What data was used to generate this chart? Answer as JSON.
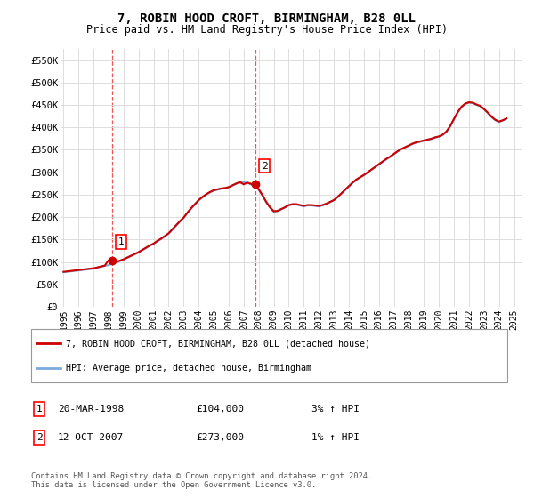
{
  "title": "7, ROBIN HOOD CROFT, BIRMINGHAM, B28 0LL",
  "subtitle": "Price paid vs. HM Land Registry's House Price Index (HPI)",
  "ylim": [
    0,
    575000
  ],
  "yticks": [
    0,
    50000,
    100000,
    150000,
    200000,
    250000,
    300000,
    350000,
    400000,
    450000,
    500000,
    550000
  ],
  "ytick_labels": [
    "£0",
    "£50K",
    "£100K",
    "£150K",
    "£200K",
    "£250K",
    "£300K",
    "£350K",
    "£400K",
    "£450K",
    "£500K",
    "£550K"
  ],
  "xlim": [
    1994.8,
    2025.5
  ],
  "xticks": [
    1995,
    1996,
    1997,
    1998,
    1999,
    2000,
    2001,
    2002,
    2003,
    2004,
    2005,
    2006,
    2007,
    2008,
    2009,
    2010,
    2011,
    2012,
    2013,
    2014,
    2015,
    2016,
    2017,
    2018,
    2019,
    2020,
    2021,
    2022,
    2023,
    2024,
    2025
  ],
  "hpi_x": [
    1995.0,
    1995.25,
    1995.5,
    1995.75,
    1996.0,
    1996.25,
    1996.5,
    1996.75,
    1997.0,
    1997.25,
    1997.5,
    1997.75,
    1998.0,
    1998.25,
    1998.5,
    1998.75,
    1999.0,
    1999.25,
    1999.5,
    1999.75,
    2000.0,
    2000.25,
    2000.5,
    2000.75,
    2001.0,
    2001.25,
    2001.5,
    2001.75,
    2002.0,
    2002.25,
    2002.5,
    2002.75,
    2003.0,
    2003.25,
    2003.5,
    2003.75,
    2004.0,
    2004.25,
    2004.5,
    2004.75,
    2005.0,
    2005.25,
    2005.5,
    2005.75,
    2006.0,
    2006.25,
    2006.5,
    2006.75,
    2007.0,
    2007.25,
    2007.5,
    2007.75,
    2008.0,
    2008.25,
    2008.5,
    2008.75,
    2009.0,
    2009.25,
    2009.5,
    2009.75,
    2010.0,
    2010.25,
    2010.5,
    2010.75,
    2011.0,
    2011.25,
    2011.5,
    2011.75,
    2012.0,
    2012.25,
    2012.5,
    2012.75,
    2013.0,
    2013.25,
    2013.5,
    2013.75,
    2014.0,
    2014.25,
    2014.5,
    2014.75,
    2015.0,
    2015.25,
    2015.5,
    2015.75,
    2016.0,
    2016.25,
    2016.5,
    2016.75,
    2017.0,
    2017.25,
    2017.5,
    2017.75,
    2018.0,
    2018.25,
    2018.5,
    2018.75,
    2019.0,
    2019.25,
    2019.5,
    2019.75,
    2020.0,
    2020.25,
    2020.5,
    2020.75,
    2021.0,
    2021.25,
    2021.5,
    2021.75,
    2022.0,
    2022.25,
    2022.5,
    2022.75,
    2023.0,
    2023.25,
    2023.5,
    2023.75,
    2024.0,
    2024.25,
    2024.5
  ],
  "hpi_y": [
    77000,
    78000,
    79000,
    80000,
    81000,
    82000,
    83000,
    84000,
    85000,
    87000,
    89000,
    91000,
    93000,
    96000,
    99000,
    102000,
    105000,
    109000,
    113000,
    117000,
    121000,
    126000,
    131000,
    136000,
    140000,
    146000,
    151000,
    157000,
    163000,
    172000,
    181000,
    190000,
    198000,
    209000,
    219000,
    228000,
    237000,
    244000,
    250000,
    255000,
    259000,
    261000,
    263000,
    264000,
    266000,
    270000,
    274000,
    277000,
    278000,
    276000,
    273000,
    268000,
    261000,
    248000,
    233000,
    221000,
    212000,
    213000,
    217000,
    221000,
    226000,
    228000,
    228000,
    226000,
    224000,
    226000,
    226000,
    225000,
    224000,
    226000,
    229000,
    233000,
    237000,
    244000,
    252000,
    260000,
    268000,
    276000,
    283000,
    288000,
    293000,
    299000,
    305000,
    311000,
    317000,
    323000,
    329000,
    334000,
    340000,
    346000,
    351000,
    355000,
    359000,
    363000,
    366000,
    368000,
    370000,
    372000,
    374000,
    377000,
    379000,
    383000,
    390000,
    402000,
    418000,
    433000,
    445000,
    452000,
    455000,
    454000,
    450000,
    447000,
    440000,
    432000,
    423000,
    416000,
    412000,
    415000,
    419000
  ],
  "price_x": [
    1995.0,
    1995.25,
    1995.5,
    1995.75,
    1996.0,
    1996.25,
    1996.5,
    1996.75,
    1997.0,
    1997.25,
    1997.5,
    1997.75,
    1998.0,
    1998.25,
    1998.5,
    1998.75,
    1999.0,
    1999.25,
    1999.5,
    1999.75,
    2000.0,
    2000.25,
    2000.5,
    2000.75,
    2001.0,
    2001.25,
    2001.5,
    2001.75,
    2002.0,
    2002.25,
    2002.5,
    2002.75,
    2003.0,
    2003.25,
    2003.5,
    2003.75,
    2004.0,
    2004.25,
    2004.5,
    2004.75,
    2005.0,
    2005.25,
    2005.5,
    2005.75,
    2006.0,
    2006.25,
    2006.5,
    2006.75,
    2007.0,
    2007.25,
    2007.5,
    2007.75,
    2008.0,
    2008.25,
    2008.5,
    2008.75,
    2009.0,
    2009.25,
    2009.5,
    2009.75,
    2010.0,
    2010.25,
    2010.5,
    2010.75,
    2011.0,
    2011.25,
    2011.5,
    2011.75,
    2012.0,
    2012.25,
    2012.5,
    2012.75,
    2013.0,
    2013.25,
    2013.5,
    2013.75,
    2014.0,
    2014.25,
    2014.5,
    2014.75,
    2015.0,
    2015.25,
    2015.5,
    2015.75,
    2016.0,
    2016.25,
    2016.5,
    2016.75,
    2017.0,
    2017.25,
    2017.5,
    2017.75,
    2018.0,
    2018.25,
    2018.5,
    2018.75,
    2019.0,
    2019.25,
    2019.5,
    2019.75,
    2020.0,
    2020.25,
    2020.5,
    2020.75,
    2021.0,
    2021.25,
    2021.5,
    2021.75,
    2022.0,
    2022.25,
    2022.5,
    2022.75,
    2023.0,
    2023.25,
    2023.5,
    2023.75,
    2024.0,
    2024.25,
    2024.5
  ],
  "price_y": [
    78000,
    79000,
    80000,
    81000,
    82000,
    83000,
    84000,
    85000,
    86000,
    88000,
    90000,
    92000,
    104000,
    97000,
    100000,
    103000,
    106000,
    110000,
    114000,
    118000,
    122000,
    127000,
    132000,
    137000,
    141000,
    147000,
    152000,
    158000,
    164000,
    173000,
    182000,
    191000,
    199000,
    210000,
    220000,
    229000,
    238000,
    245000,
    251000,
    256000,
    260000,
    262000,
    264000,
    265000,
    267000,
    271000,
    275000,
    278000,
    273000,
    277000,
    274000,
    269000,
    262000,
    249000,
    234000,
    222000,
    213000,
    214000,
    218000,
    222000,
    227000,
    229000,
    229000,
    227000,
    225000,
    227000,
    227000,
    226000,
    225000,
    227000,
    230000,
    234000,
    238000,
    245000,
    253000,
    261000,
    269000,
    277000,
    284000,
    289000,
    294000,
    300000,
    306000,
    312000,
    318000,
    324000,
    330000,
    335000,
    341000,
    347000,
    352000,
    356000,
    360000,
    364000,
    367000,
    369000,
    371000,
    373000,
    375000,
    378000,
    380000,
    384000,
    391000,
    403000,
    419000,
    434000,
    446000,
    453000,
    456000,
    455000,
    451000,
    448000,
    441000,
    433000,
    424000,
    417000,
    413000,
    416000,
    420000
  ],
  "sale1_x": 1998.22,
  "sale1_y": 104000,
  "sale2_x": 2007.79,
  "sale2_y": 273000,
  "sale1_label": "1",
  "sale2_label": "2",
  "legend_line1": "7, ROBIN HOOD CROFT, BIRMINGHAM, B28 0LL (detached house)",
  "legend_line2": "HPI: Average price, detached house, Birmingham",
  "table_rows": [
    [
      "1",
      "20-MAR-1998",
      "£104,000",
      "3% ↑ HPI"
    ],
    [
      "2",
      "12-OCT-2007",
      "£273,000",
      "1% ↑ HPI"
    ]
  ],
  "footer": "Contains HM Land Registry data © Crown copyright and database right 2024.\nThis data is licensed under the Open Government Licence v3.0.",
  "red_color": "#cc0000",
  "blue_color": "#7aaadd",
  "background_color": "#ffffff",
  "grid_color": "#dddddd",
  "dashed_color": "#ee4444"
}
